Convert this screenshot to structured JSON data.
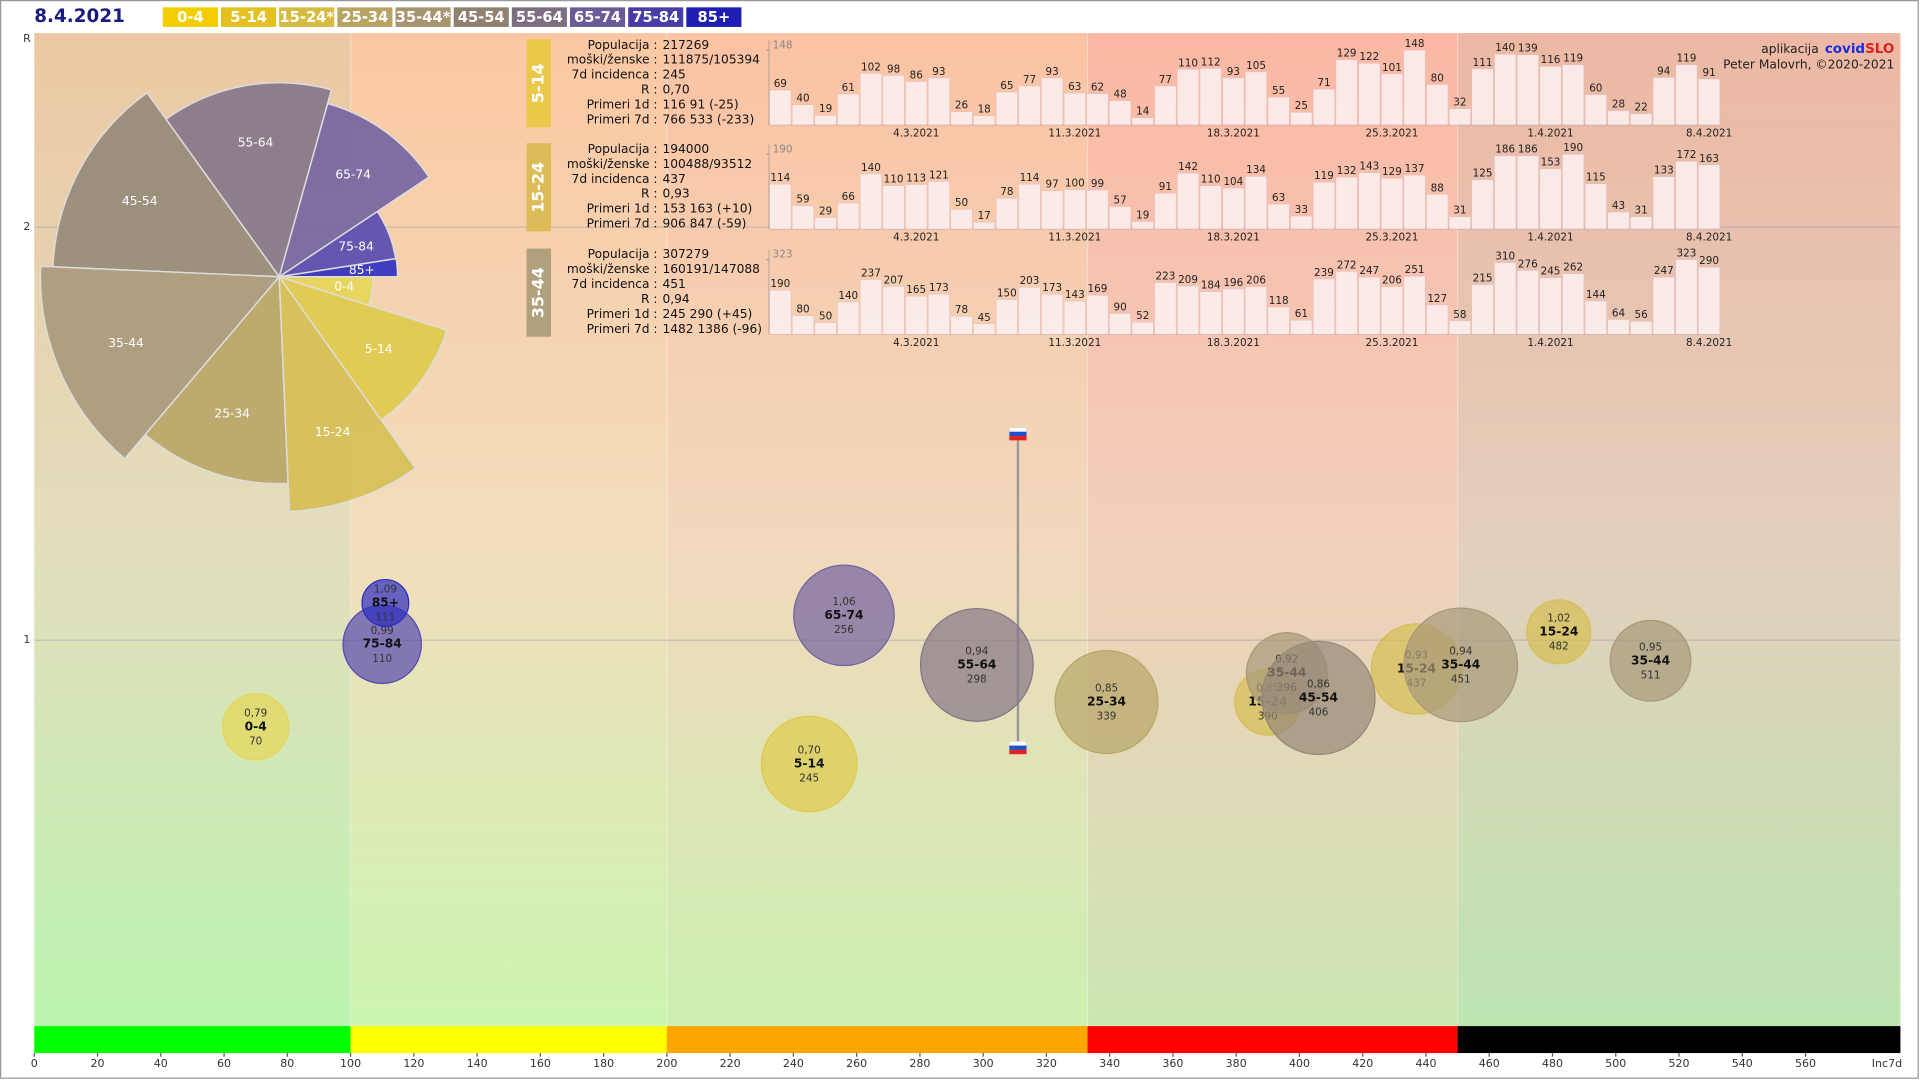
{
  "date": "8.4.2021",
  "legend": [
    {
      "name": "0-4",
      "color": "#f2ce00"
    },
    {
      "name": "5-14",
      "color": "#e4c020"
    },
    {
      "name": "15-24*",
      "color": "#d6bb40"
    },
    {
      "name": "25-34",
      "color": "#b8a462"
    },
    {
      "name": "35-44*",
      "color": "#a79570"
    },
    {
      "name": "45-54",
      "color": "#8f8070"
    },
    {
      "name": "55-64",
      "color": "#7d6e82"
    },
    {
      "name": "65-74",
      "color": "#6a5a96"
    },
    {
      "name": "75-84",
      "color": "#4a3ca6"
    },
    {
      "name": "85+",
      "color": "#1e1eb4"
    }
  ],
  "credit": {
    "prefix": "aplikacija",
    "brand1": "covid",
    "brand2": "SLO",
    "author": "Peter Malovrh, ©2020-2021"
  },
  "chart_data": [
    {
      "type": "scatter",
      "x_label": "Inc7d",
      "y_label": "R",
      "xlim": [
        0,
        590
      ],
      "ylim": [
        0,
        2.47
      ],
      "xticks": [
        0,
        20,
        40,
        60,
        80,
        100,
        120,
        140,
        160,
        180,
        200,
        220,
        240,
        260,
        280,
        300,
        320,
        340,
        360,
        380,
        400,
        420,
        440,
        460,
        480,
        500,
        520,
        540,
        560
      ],
      "yticks": [
        1,
        2
      ],
      "grid": true,
      "zones": [
        {
          "from": 0,
          "to": 100,
          "color": "#00ff00"
        },
        {
          "from": 100,
          "to": 200,
          "color": "#ffff00"
        },
        {
          "from": 200,
          "to": 333,
          "color": "#ffa500"
        },
        {
          "from": 333,
          "to": 450,
          "color": "#ff0000"
        },
        {
          "from": 450,
          "to": 590,
          "color": "#000000"
        }
      ],
      "marker": {
        "x": 311,
        "values": [
          0.74,
          1.5
        ]
      },
      "series": [
        {
          "name": "0-4",
          "color": "#e6d656",
          "x": [
            70
          ],
          "values": [
            0.79
          ],
          "value_labels": [
            "0,79"
          ],
          "sizes": [
            104000
          ]
        },
        {
          "name": "5-14",
          "color": "#e0ca4a",
          "x": [
            245
          ],
          "values": [
            0.7
          ],
          "value_labels": [
            "0,70"
          ],
          "sizes": [
            217269
          ]
        },
        {
          "name": "15-24",
          "color": "#d6be52",
          "x": [
            437,
            482,
            390
          ],
          "values": [
            0.93,
            1.02,
            0.85
          ],
          "value_labels": [
            "0,93",
            "1,02",
            "0,85"
          ],
          "sizes": [
            194000,
            97000,
            104000
          ]
        },
        {
          "name": "25-34",
          "color": "#b8a566",
          "x": [
            339
          ],
          "values": [
            0.85
          ],
          "value_labels": [
            "0,85"
          ],
          "sizes": [
            252000
          ]
        },
        {
          "name": "35-44",
          "color": "#a8987a",
          "x": [
            451,
            511,
            396
          ],
          "values": [
            0.94,
            0.95,
            0.92
          ],
          "value_labels": [
            "0,94",
            "0,95",
            "0,92"
          ],
          "sizes": [
            307279,
            155000,
            155000
          ]
        },
        {
          "name": "45-54",
          "color": "#958878",
          "x": [
            406
          ],
          "values": [
            0.86
          ],
          "value_labels": [
            "0,86"
          ],
          "sizes": [
            305000
          ]
        },
        {
          "name": "55-64",
          "color": "#847688",
          "x": [
            298
          ],
          "values": [
            0.94
          ],
          "value_labels": [
            "0,94"
          ],
          "sizes": [
            302000
          ]
        },
        {
          "name": "65-74",
          "color": "#7263a0",
          "x": [
            256
          ],
          "values": [
            1.06
          ],
          "value_labels": [
            "1,06"
          ],
          "sizes": [
            240000
          ]
        },
        {
          "name": "75-84",
          "color": "#5548b0",
          "x": [
            110
          ],
          "values": [
            0.99
          ],
          "value_labels": [
            "0,99"
          ],
          "sizes": [
            146000
          ]
        },
        {
          "name": "85+",
          "color": "#2c2cc0",
          "x": [
            111
          ],
          "values": [
            1.09
          ],
          "value_labels": [
            "1,09"
          ],
          "sizes": [
            52000
          ]
        }
      ]
    },
    {
      "type": "bar",
      "title": "5-14",
      "tag_color": "#eac84a",
      "color": "#fbeeee",
      "info": [
        {
          "label": "Populacija :",
          "value": "217269"
        },
        {
          "label": "moški/ženske :",
          "value": "111875/105394"
        },
        {
          "label": "7d incidenca :",
          "value": "245"
        },
        {
          "label": "R :",
          "value": "0,70"
        },
        {
          "label": "Primeri 1d :",
          "value": "116 91 (-25)"
        },
        {
          "label": "Primeri 7d :",
          "value": "766 533 (-233)"
        }
      ],
      "ylim": [
        0,
        148
      ],
      "yticks": [
        148
      ],
      "categories": [
        null,
        null,
        null,
        null,
        null,
        null,
        "4.3.2021",
        null,
        null,
        null,
        null,
        null,
        null,
        "11.3.2021",
        null,
        null,
        null,
        null,
        null,
        null,
        "18.3.2021",
        null,
        null,
        null,
        null,
        null,
        null,
        "25.3.2021",
        null,
        null,
        null,
        null,
        null,
        null,
        "1.4.2021",
        null,
        null,
        null,
        null,
        null,
        null,
        "8.4.2021"
      ],
      "values": [
        69,
        40,
        19,
        61,
        102,
        98,
        86,
        93,
        26,
        18,
        65,
        77,
        93,
        63,
        62,
        48,
        14,
        77,
        110,
        112,
        93,
        105,
        55,
        25,
        71,
        129,
        122,
        101,
        148,
        80,
        32,
        111,
        140,
        139,
        116,
        119,
        60,
        28,
        22,
        94,
        119,
        91
      ]
    },
    {
      "type": "bar",
      "title": "15-24",
      "tag_color": "#dcbc58",
      "color": "#fbeeee",
      "info": [
        {
          "label": "Populacija :",
          "value": "194000"
        },
        {
          "label": "moški/ženske :",
          "value": "100488/93512"
        },
        {
          "label": "7d incidenca :",
          "value": "437"
        },
        {
          "label": "R :",
          "value": "0,93"
        },
        {
          "label": "Primeri 1d :",
          "value": "153 163 (+10)"
        },
        {
          "label": "Primeri 7d :",
          "value": "906 847 (-59)"
        }
      ],
      "ylim": [
        0,
        190
      ],
      "yticks": [
        190
      ],
      "categories": [
        null,
        null,
        null,
        null,
        null,
        null,
        "4.3.2021",
        null,
        null,
        null,
        null,
        null,
        null,
        "11.3.2021",
        null,
        null,
        null,
        null,
        null,
        null,
        "18.3.2021",
        null,
        null,
        null,
        null,
        null,
        null,
        "25.3.2021",
        null,
        null,
        null,
        null,
        null,
        null,
        "1.4.2021",
        null,
        null,
        null,
        null,
        null,
        null,
        "8.4.2021"
      ],
      "values": [
        114,
        59,
        29,
        66,
        140,
        110,
        113,
        121,
        50,
        17,
        78,
        114,
        97,
        100,
        99,
        57,
        19,
        91,
        142,
        110,
        104,
        134,
        63,
        33,
        119,
        132,
        143,
        129,
        137,
        88,
        31,
        125,
        186,
        186,
        153,
        190,
        115,
        43,
        31,
        133,
        172,
        163
      ]
    },
    {
      "type": "bar",
      "title": "35-44",
      "tag_color": "#b0a07c",
      "color": "#fbeeee",
      "info": [
        {
          "label": "Populacija :",
          "value": "307279"
        },
        {
          "label": "moški/ženske :",
          "value": "160191/147088"
        },
        {
          "label": "7d incidenca :",
          "value": "451"
        },
        {
          "label": "R :",
          "value": "0,94"
        },
        {
          "label": "Primeri 1d :",
          "value": "245 290 (+45)"
        },
        {
          "label": "Primeri 7d :",
          "value": "1482 1386 (-96)"
        }
      ],
      "ylim": [
        0,
        323
      ],
      "yticks": [
        323
      ],
      "categories": [
        null,
        null,
        null,
        null,
        null,
        null,
        "4.3.2021",
        null,
        null,
        null,
        null,
        null,
        null,
        "11.3.2021",
        null,
        null,
        null,
        null,
        null,
        null,
        "18.3.2021",
        null,
        null,
        null,
        null,
        null,
        null,
        "25.3.2021",
        null,
        null,
        null,
        null,
        null,
        null,
        "1.4.2021",
        null,
        null,
        null,
        null,
        null,
        null,
        "8.4.2021"
      ],
      "values": [
        190,
        80,
        50,
        140,
        237,
        207,
        165,
        173,
        78,
        45,
        150,
        203,
        173,
        143,
        169,
        90,
        52,
        223,
        209,
        184,
        196,
        206,
        118,
        61,
        239,
        272,
        247,
        206,
        251,
        127,
        58,
        215,
        310,
        276,
        245,
        262,
        144,
        64,
        56,
        247,
        323,
        290
      ]
    }
  ]
}
